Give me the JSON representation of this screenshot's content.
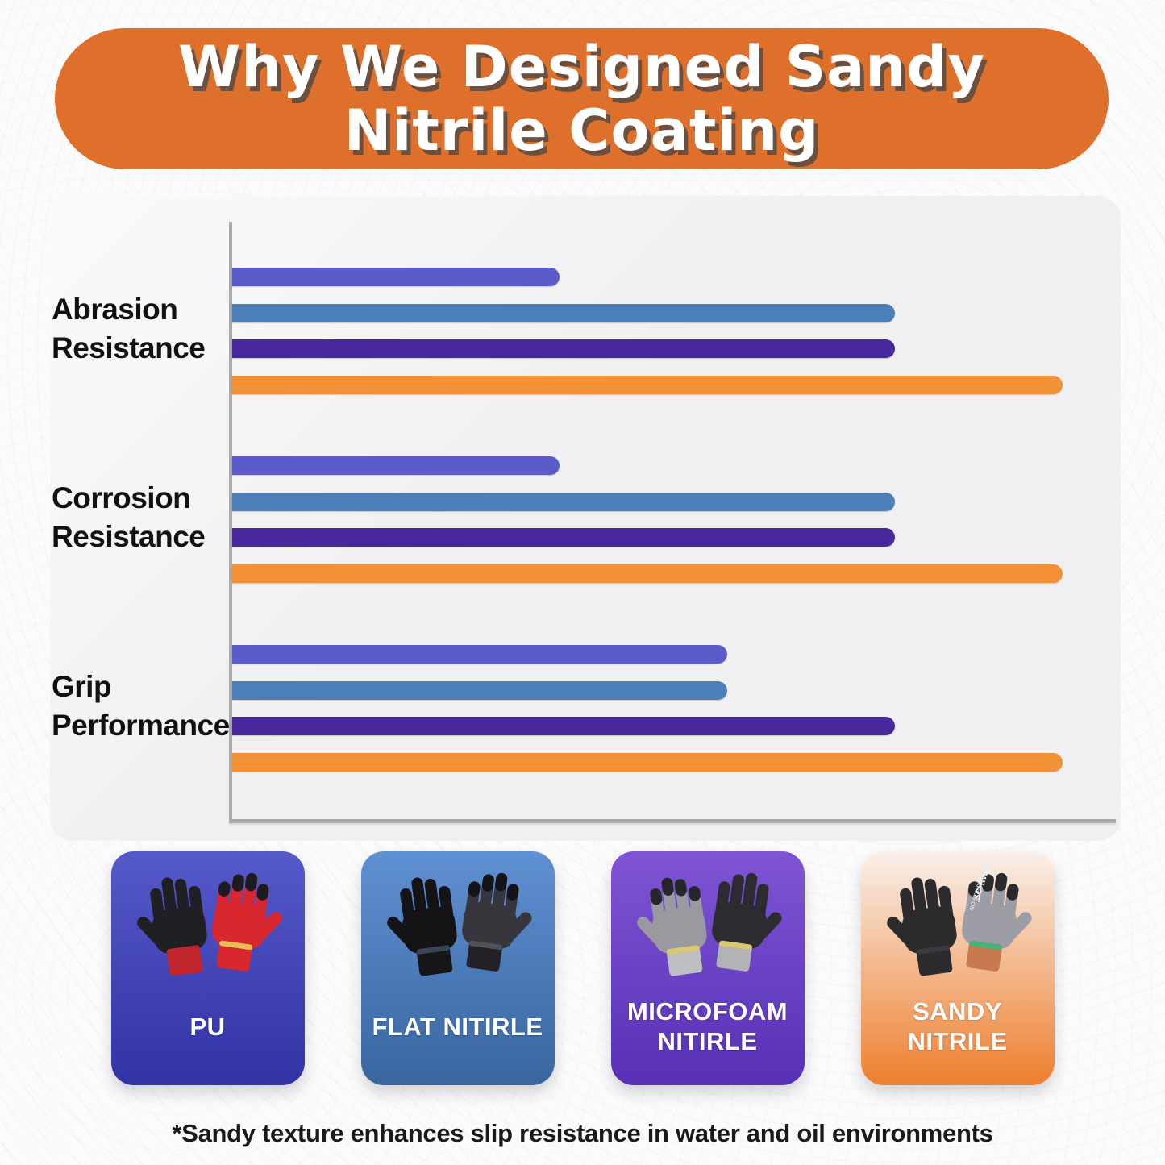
{
  "title": {
    "line1": "Why We Designed Sandy",
    "line2": "Nitrile Coating"
  },
  "footnote": "*Sandy texture enhances slip resistance in water and oil environments",
  "colors": {
    "banner": "#DF702C",
    "panel": "#F0EFF1",
    "axis": "#A9A9A9",
    "category_text": "#111111",
    "title_text": "#FFFFFF",
    "title_shadow": "#6B6B6B",
    "footnote_text": "#1A1A1A",
    "card_label_text": "#FFFFFF"
  },
  "chart_data": {
    "type": "bar",
    "orientation": "horizontal",
    "categories": [
      "Abrasion Resistance",
      "Corrosion Resistance",
      "Grip Performance"
    ],
    "series": [
      {
        "name": "PU",
        "color": "#5B5CC9",
        "values": [
          37,
          37,
          56
        ]
      },
      {
        "name": "Flat Nitrile",
        "color": "#4C7FB7",
        "values": [
          75,
          75,
          56
        ]
      },
      {
        "name": "Microfoam Nitrile",
        "color": "#47289D",
        "values": [
          75,
          75,
          75
        ]
      },
      {
        "name": "Sandy Nitrile",
        "color": "#F29135",
        "values": [
          94,
          94,
          94
        ]
      }
    ],
    "xlim": [
      0,
      100
    ],
    "grid": false,
    "axis_tick_labels_shown": false,
    "value_note": "relative bar lengths estimated from pixels; chart shows no numeric axis",
    "legend_position": "bottom cards"
  },
  "cards": [
    {
      "label_lines": [
        "PU"
      ],
      "bg_top": "#5659C9",
      "bg_bottom": "#3133A6",
      "gloves": [
        {
          "back": "#202024",
          "tips": "#202024",
          "cuff": "#C0262C",
          "trim": "#C0262C"
        },
        {
          "back": "#D8272E",
          "tips": "#1C1C20",
          "cuff": "#D8272E",
          "trim": "#E7C14F"
        }
      ]
    },
    {
      "label_lines": [
        "FLAT NITIRLE"
      ],
      "bg_top": "#5F90D3",
      "bg_bottom": "#39669F",
      "gloves": [
        {
          "back": "#141417",
          "tips": "#141417",
          "cuff": "#17171A",
          "trim": "#3A4656"
        },
        {
          "back": "#36363C",
          "tips": "#141417",
          "cuff": "#222226",
          "trim": "#505058"
        }
      ]
    },
    {
      "label_lines": [
        "MICROFOAM",
        "NITIRLE"
      ],
      "bg_top": "#7F55D5",
      "bg_bottom": "#5730B5",
      "gloves": [
        {
          "back": "#99999F",
          "tips": "#27272A",
          "cuff": "#BFBFC3",
          "trim": "#D9C86E"
        },
        {
          "back": "#2C2C30",
          "tips": "#2C2C30",
          "cuff": "#B3B3B7",
          "trim": "#D9C86E"
        }
      ]
    },
    {
      "label_lines": [
        "SANDY",
        "NITRILE"
      ],
      "bg_top": "#F8F0EA",
      "bg_bottom": "#EE7F2E",
      "branding": [
        "SCHWER",
        "NO.LT5626"
      ],
      "gloves": [
        {
          "back": "#2B2B2E",
          "tips": "#2B2B2E",
          "cuff": "#2B2B2E",
          "trim": "#3A3A3E"
        },
        {
          "back": "#9D9DA5",
          "tips": "#2B2B2E",
          "cuff": "#C8794F",
          "trim": "#49B27A"
        }
      ]
    }
  ]
}
